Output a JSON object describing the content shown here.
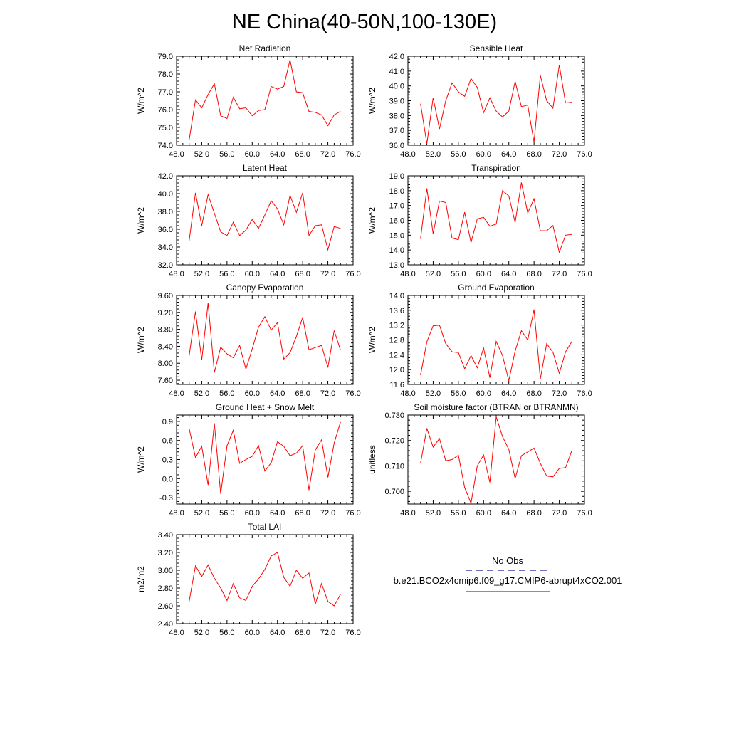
{
  "title": "NE China(40-50N,100-130E)",
  "legend": {
    "obs_label": "No Obs",
    "obs_color": "#1a1a8c",
    "model_label": "b.e21.BCO2x4cmip6.f09_g17.CMIP6-abrupt4xCO2.001",
    "model_color": "#ff0000"
  },
  "chart_data": [
    {
      "type": "line",
      "title": "Net Radiation",
      "ylabel": "W/m^2",
      "xlim": [
        48,
        76
      ],
      "ylim": [
        74,
        79
      ],
      "xticks": [
        "48.0",
        "52.0",
        "56.0",
        "60.0",
        "64.0",
        "68.0",
        "72.0",
        "76.0"
      ],
      "yticks": [
        "74.0",
        "75.0",
        "76.0",
        "77.0",
        "78.0",
        "79.0"
      ],
      "x": [
        50,
        51,
        52,
        53,
        54,
        55,
        56,
        57,
        58,
        59,
        60,
        61,
        62,
        63,
        64,
        65,
        66,
        67,
        68,
        69,
        70,
        71,
        72,
        73,
        74
      ],
      "values": [
        74.3,
        76.55,
        76.1,
        76.85,
        77.45,
        75.65,
        75.5,
        76.7,
        76.05,
        76.1,
        75.65,
        75.95,
        76.0,
        77.3,
        77.15,
        77.3,
        78.8,
        77.0,
        76.95,
        75.9,
        75.85,
        75.7,
        75.1,
        75.7,
        75.9
      ]
    },
    {
      "type": "line",
      "title": "Sensible Heat",
      "ylabel": "W/m^2",
      "xlim": [
        48,
        76
      ],
      "ylim": [
        36,
        42
      ],
      "xticks": [
        "48.0",
        "52.0",
        "56.0",
        "60.0",
        "64.0",
        "68.0",
        "72.0",
        "76.0"
      ],
      "yticks": [
        "36.0",
        "37.0",
        "38.0",
        "39.0",
        "40.0",
        "41.0",
        "42.0"
      ],
      "x": [
        50,
        51,
        52,
        53,
        54,
        55,
        56,
        57,
        58,
        59,
        60,
        61,
        62,
        63,
        64,
        65,
        66,
        67,
        68,
        69,
        70,
        71,
        72,
        73,
        74
      ],
      "values": [
        38.8,
        36.1,
        39.2,
        37.1,
        39.0,
        40.2,
        39.6,
        39.3,
        40.5,
        39.9,
        38.2,
        39.2,
        38.3,
        37.9,
        38.3,
        40.3,
        38.6,
        38.7,
        36.2,
        40.7,
        39.0,
        38.5,
        41.4,
        38.85,
        38.9
      ]
    },
    {
      "type": "line",
      "title": "Latent Heat",
      "ylabel": "W/m^2",
      "xlim": [
        48,
        76
      ],
      "ylim": [
        32,
        42
      ],
      "xticks": [
        "48.0",
        "52.0",
        "56.0",
        "60.0",
        "64.0",
        "68.0",
        "72.0",
        "76.0"
      ],
      "yticks": [
        "32.0",
        "34.0",
        "36.0",
        "38.0",
        "40.0",
        "42.0"
      ],
      "x": [
        50,
        51,
        52,
        53,
        54,
        55,
        56,
        57,
        58,
        59,
        60,
        61,
        62,
        63,
        64,
        65,
        66,
        67,
        68,
        69,
        70,
        71,
        72,
        73,
        74
      ],
      "values": [
        34.7,
        40.1,
        36.4,
        39.9,
        37.8,
        35.7,
        35.3,
        36.8,
        35.3,
        35.9,
        37.1,
        36.1,
        37.6,
        39.2,
        38.3,
        36.5,
        39.8,
        37.9,
        40.1,
        35.3,
        36.4,
        36.5,
        33.7,
        36.3,
        36.1
      ]
    },
    {
      "type": "line",
      "title": "Transpiration",
      "ylabel": "W/m^2",
      "xlim": [
        48,
        76
      ],
      "ylim": [
        13,
        19
      ],
      "xticks": [
        "48.0",
        "52.0",
        "56.0",
        "60.0",
        "64.0",
        "68.0",
        "72.0",
        "76.0"
      ],
      "yticks": [
        "13.0",
        "14.0",
        "15.0",
        "16.0",
        "17.0",
        "18.0",
        "19.0"
      ],
      "x": [
        50,
        51,
        52,
        53,
        54,
        55,
        56,
        57,
        58,
        59,
        60,
        61,
        62,
        63,
        64,
        65,
        66,
        67,
        68,
        69,
        70,
        71,
        72,
        73,
        74
      ],
      "values": [
        14.75,
        18.15,
        15.1,
        17.3,
        17.2,
        14.8,
        14.7,
        16.55,
        14.5,
        16.1,
        16.2,
        15.6,
        15.75,
        18.0,
        17.65,
        15.85,
        18.55,
        16.5,
        17.45,
        15.3,
        15.3,
        15.65,
        13.85,
        15.0,
        15.05
      ]
    },
    {
      "type": "line",
      "title": "Canopy Evaporation",
      "ylabel": "W/m^2",
      "xlim": [
        48,
        76
      ],
      "ylim": [
        7.5,
        9.6
      ],
      "xticks": [
        "48.0",
        "52.0",
        "56.0",
        "60.0",
        "64.0",
        "68.0",
        "72.0",
        "76.0"
      ],
      "yticks": [
        "7.60",
        "8.00",
        "8.40",
        "8.80",
        "9.20",
        "9.60"
      ],
      "x": [
        50,
        51,
        52,
        53,
        54,
        55,
        56,
        57,
        58,
        59,
        60,
        61,
        62,
        63,
        64,
        65,
        66,
        67,
        68,
        69,
        70,
        71,
        72,
        73,
        74
      ],
      "values": [
        8.18,
        9.22,
        8.08,
        9.42,
        7.78,
        8.38,
        8.22,
        8.13,
        8.42,
        7.86,
        8.34,
        8.85,
        9.1,
        8.78,
        8.96,
        8.1,
        8.25,
        8.63,
        9.08,
        8.32,
        8.37,
        8.42,
        7.9,
        8.77,
        8.31
      ]
    },
    {
      "type": "line",
      "title": "Ground Evaporation",
      "ylabel": "W/m^2",
      "xlim": [
        48,
        76
      ],
      "ylim": [
        11.6,
        14.0
      ],
      "xticks": [
        "48.0",
        "52.0",
        "56.0",
        "60.0",
        "64.0",
        "68.0",
        "72.0",
        "76.0"
      ],
      "yticks": [
        "11.6",
        "12.0",
        "12.4",
        "12.8",
        "13.2",
        "13.6",
        "14.0"
      ],
      "x": [
        50,
        51,
        52,
        53,
        54,
        55,
        56,
        57,
        58,
        59,
        60,
        61,
        62,
        63,
        64,
        65,
        66,
        67,
        68,
        69,
        70,
        71,
        72,
        73,
        74
      ],
      "values": [
        11.85,
        12.75,
        13.18,
        13.2,
        12.7,
        12.48,
        12.46,
        12.02,
        12.38,
        12.05,
        12.58,
        11.78,
        12.76,
        12.38,
        11.7,
        12.5,
        13.05,
        12.8,
        13.62,
        11.75,
        12.7,
        12.47,
        11.9,
        12.48,
        12.76
      ]
    },
    {
      "type": "line",
      "title": "Ground Heat + Snow Melt",
      "ylabel": "W/m^2",
      "xlim": [
        48,
        76
      ],
      "ylim": [
        -0.4,
        1.0
      ],
      "xticks": [
        "48.0",
        "52.0",
        "56.0",
        "60.0",
        "64.0",
        "68.0",
        "72.0",
        "76.0"
      ],
      "yticks": [
        "-0.3",
        "0.0",
        "0.3",
        "0.6",
        "0.9"
      ],
      "x": [
        50,
        51,
        52,
        53,
        54,
        55,
        56,
        57,
        58,
        59,
        60,
        61,
        62,
        63,
        64,
        65,
        66,
        67,
        68,
        69,
        70,
        71,
        72,
        73,
        74
      ],
      "values": [
        0.79,
        0.33,
        0.51,
        -0.1,
        0.87,
        -0.24,
        0.52,
        0.76,
        0.24,
        0.3,
        0.35,
        0.52,
        0.12,
        0.25,
        0.58,
        0.51,
        0.36,
        0.4,
        0.52,
        -0.18,
        0.45,
        0.61,
        0.02,
        0.56,
        0.89
      ]
    },
    {
      "type": "line",
      "title": "Soil moisture factor (BTRAN or BTRANMN)",
      "ylabel": "unitless",
      "xlim": [
        48,
        76
      ],
      "ylim": [
        0.695,
        0.73
      ],
      "xticks": [
        "48.0",
        "52.0",
        "56.0",
        "60.0",
        "64.0",
        "68.0",
        "72.0",
        "76.0"
      ],
      "yticks": [
        "0.700",
        "0.710",
        "0.720",
        "0.730"
      ],
      "x": [
        50,
        51,
        52,
        53,
        54,
        55,
        56,
        57,
        58,
        59,
        60,
        61,
        62,
        63,
        64,
        65,
        66,
        67,
        68,
        69,
        70,
        71,
        72,
        73,
        74
      ],
      "values": [
        0.711,
        0.7248,
        0.7174,
        0.7208,
        0.712,
        0.7125,
        0.7142,
        0.7015,
        0.6953,
        0.71,
        0.7143,
        0.7035,
        0.7293,
        0.7215,
        0.7165,
        0.705,
        0.714,
        0.7155,
        0.717,
        0.711,
        0.706,
        0.7057,
        0.709,
        0.7093,
        0.716
      ]
    },
    {
      "type": "line",
      "title": "Total LAI",
      "ylabel": "m2/m2",
      "xlim": [
        48,
        76
      ],
      "ylim": [
        2.4,
        3.4
      ],
      "xticks": [
        "48.0",
        "52.0",
        "56.0",
        "60.0",
        "64.0",
        "68.0",
        "72.0",
        "76.0"
      ],
      "yticks": [
        "2.40",
        "2.60",
        "2.80",
        "3.00",
        "3.20",
        "3.40"
      ],
      "x": [
        50,
        51,
        52,
        53,
        54,
        55,
        56,
        57,
        58,
        59,
        60,
        61,
        62,
        63,
        64,
        65,
        66,
        67,
        68,
        69,
        70,
        71,
        72,
        73,
        74
      ],
      "values": [
        2.65,
        3.05,
        2.93,
        3.06,
        2.91,
        2.8,
        2.66,
        2.85,
        2.69,
        2.66,
        2.82,
        2.9,
        3.01,
        3.16,
        3.2,
        2.92,
        2.82,
        3.0,
        2.91,
        2.97,
        2.62,
        2.85,
        2.65,
        2.6,
        2.73
      ]
    }
  ]
}
